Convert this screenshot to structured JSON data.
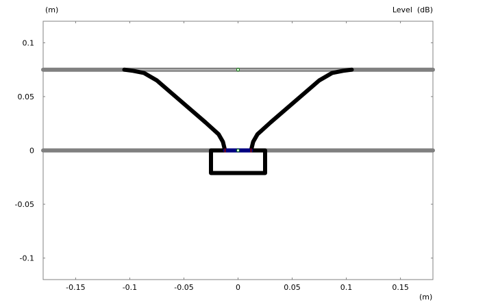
{
  "chart_data": {
    "type": "line",
    "title": "",
    "xlabel": "(m)",
    "ylabel": "(m)",
    "right_label": "Level  (dB)",
    "xlim": [
      -0.18,
      0.18
    ],
    "ylim": [
      -0.12,
      0.12
    ],
    "xticks": [
      -0.15,
      -0.1,
      -0.05,
      0,
      0.05,
      0.1,
      0.15
    ],
    "xtick_labels": [
      "-0.15",
      "-0.1",
      "-0.05",
      "0",
      "0.05",
      "0.1",
      "0.15"
    ],
    "yticks": [
      0.1,
      0.05,
      0,
      -0.05,
      -0.1
    ],
    "ytick_labels": [
      "0.1",
      "0.05",
      "0",
      "-0.05",
      "-0.1"
    ],
    "grid": false,
    "colors": {
      "baffle": "#808080",
      "mouth_line": "#c0c0c0",
      "horn": "#000000",
      "diaphragm": "#000080",
      "edge": "#800000",
      "marker": "#008000"
    },
    "series": [
      {
        "role": "baffle-lower",
        "x": [
          -0.18,
          0.18
        ],
        "y": [
          0,
          0
        ]
      },
      {
        "role": "baffle-upper",
        "x": [
          -0.18,
          0.18
        ],
        "y": [
          0.075,
          0.075
        ]
      },
      {
        "role": "mouth-line",
        "x": [
          -0.105,
          0.105
        ],
        "y": [
          0.075,
          0.075
        ]
      },
      {
        "role": "horn-left",
        "x": [
          -0.012,
          -0.014,
          -0.018,
          -0.03,
          -0.075,
          -0.087,
          -0.097,
          -0.105
        ],
        "y": [
          0,
          0.008,
          0.015,
          0.026,
          0.065,
          0.072,
          0.074,
          0.075
        ]
      },
      {
        "role": "horn-right",
        "x": [
          0.012,
          0.014,
          0.018,
          0.03,
          0.075,
          0.087,
          0.097,
          0.105
        ],
        "y": [
          0,
          0.008,
          0.015,
          0.026,
          0.065,
          0.072,
          0.074,
          0.075
        ]
      },
      {
        "role": "chamber",
        "x": [
          -0.025,
          0.025,
          0.025,
          -0.025,
          -0.025
        ],
        "y": [
          0,
          0,
          -0.021,
          -0.021,
          0
        ]
      },
      {
        "role": "diaphragm",
        "x": [
          -0.012,
          0.012
        ],
        "y": [
          0,
          0
        ]
      }
    ],
    "markers": [
      {
        "role": "mouth-center",
        "x": 0,
        "y": 0.075
      },
      {
        "role": "throat-center",
        "x": 0,
        "y": 0
      }
    ]
  }
}
